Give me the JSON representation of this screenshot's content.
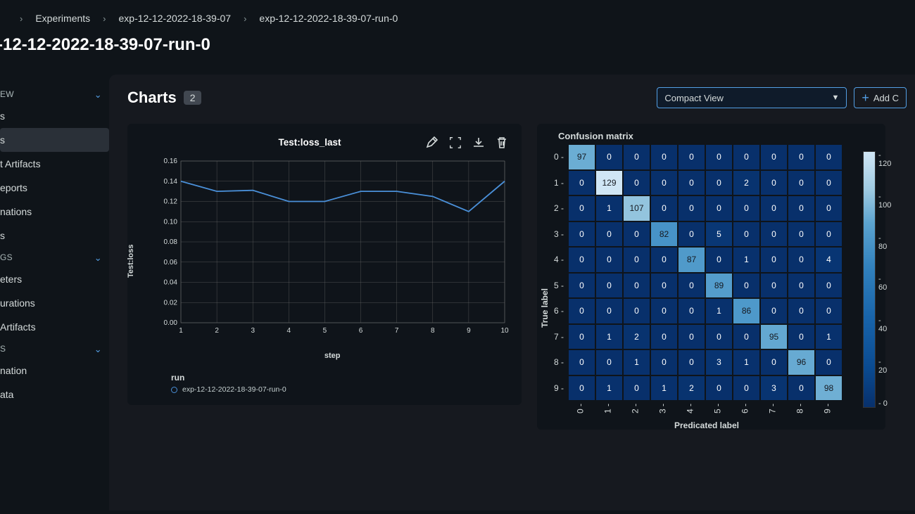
{
  "breadcrumb": [
    {
      "label": "Experiments"
    },
    {
      "label": "exp-12-12-2022-18-39-07"
    },
    {
      "label": "exp-12-12-2022-18-39-07-run-0"
    }
  ],
  "page_title": "-12-12-2022-18-39-07-run-0",
  "sidebar": {
    "sections": [
      {
        "label": "EW",
        "items": [
          {
            "label": "s"
          },
          {
            "label": "s",
            "active": true
          },
          {
            "label": "t Artifacts"
          },
          {
            "label": "eports"
          },
          {
            "label": "nations"
          },
          {
            "label": "s"
          }
        ]
      },
      {
        "label": "GS",
        "items": [
          {
            "label": "eters"
          },
          {
            "label": "urations"
          },
          {
            "label": "Artifacts"
          }
        ]
      },
      {
        "label": "S",
        "items": [
          {
            "label": "nation"
          },
          {
            "label": "ata"
          }
        ]
      }
    ]
  },
  "main": {
    "charts_title": "Charts",
    "charts_count": "2",
    "view_select": "Compact View",
    "add_button": "Add C"
  },
  "line_chart": {
    "title": "Test:loss_last",
    "ylabel": "Test:loss",
    "xlabel": "step",
    "legend_title": "run",
    "legend_item": "exp-12-12-2022-18-39-07-run-0",
    "x_ticks": [
      1,
      2,
      3,
      4,
      5,
      6,
      7,
      8,
      9,
      10
    ],
    "y_ticks": [
      "0.00",
      "0.02",
      "0.04",
      "0.06",
      "0.08",
      "0.10",
      "0.12",
      "0.14",
      "0.16"
    ],
    "y_min": 0.0,
    "y_max": 0.16,
    "values": [
      0.14,
      0.13,
      0.131,
      0.12,
      0.12,
      0.13,
      0.13,
      0.125,
      0.11,
      0.14
    ],
    "line_color": "#4a90d9",
    "grid_color": "#6b6b6b",
    "plot_bg": "#0f141a"
  },
  "confusion_matrix": {
    "title": "Confusion matrix",
    "ylabel": "True label",
    "xlabel": "Predicated label",
    "row_labels": [
      "0",
      "1",
      "2",
      "3",
      "4",
      "5",
      "6",
      "7",
      "8",
      "9"
    ],
    "col_labels": [
      "0",
      "1",
      "2",
      "3",
      "4",
      "5",
      "6",
      "7",
      "8",
      "9"
    ],
    "data": [
      [
        97,
        0,
        0,
        0,
        0,
        0,
        0,
        0,
        0,
        0
      ],
      [
        0,
        129,
        0,
        0,
        0,
        0,
        2,
        0,
        0,
        0
      ],
      [
        0,
        1,
        107,
        0,
        0,
        0,
        0,
        0,
        0,
        0
      ],
      [
        0,
        0,
        0,
        82,
        0,
        5,
        0,
        0,
        0,
        0
      ],
      [
        0,
        0,
        0,
        0,
        87,
        0,
        1,
        0,
        0,
        4
      ],
      [
        0,
        0,
        0,
        0,
        0,
        89,
        0,
        0,
        0,
        0
      ],
      [
        0,
        0,
        0,
        0,
        0,
        1,
        86,
        0,
        0,
        0
      ],
      [
        0,
        1,
        2,
        0,
        0,
        0,
        0,
        95,
        0,
        1
      ],
      [
        0,
        0,
        1,
        0,
        0,
        3,
        1,
        0,
        96,
        0
      ],
      [
        0,
        1,
        0,
        1,
        2,
        0,
        0,
        3,
        0,
        98
      ]
    ],
    "color_low": "#08306b",
    "color_high": "#c6dbef",
    "colorbar_ticks": [
      "120",
      "100",
      "80",
      "60",
      "40",
      "20",
      "0"
    ],
    "vmax": 129
  }
}
